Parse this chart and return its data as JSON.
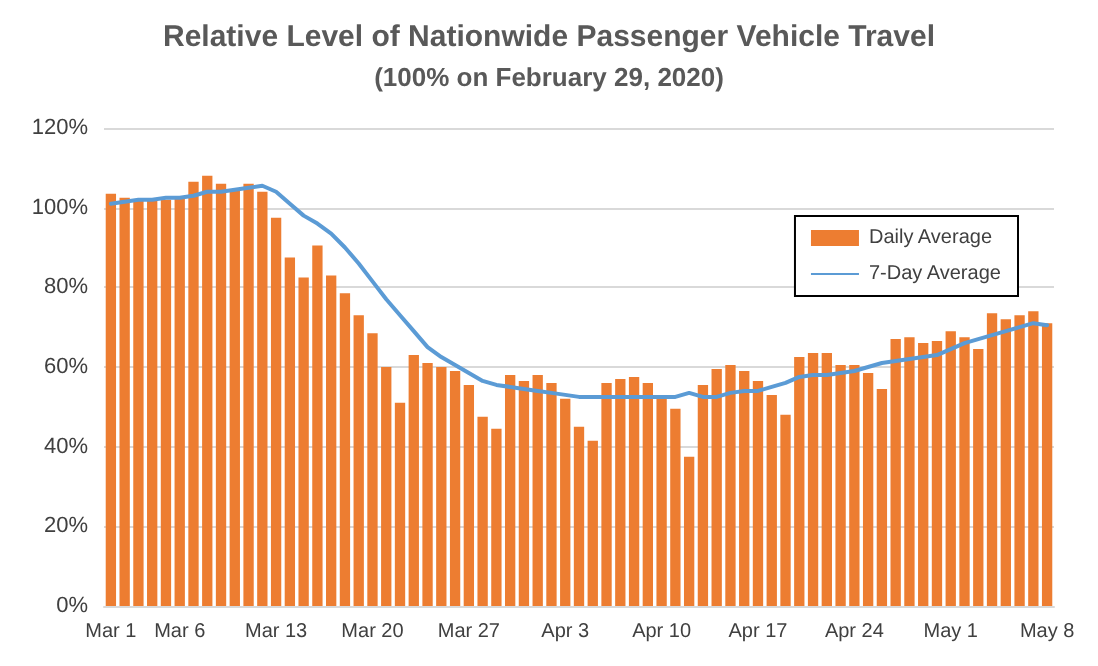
{
  "chart_data": {
    "type": "bar",
    "title": "Relative Level of Nationwide Passenger Vehicle Travel",
    "subtitle": "(100% on February 29, 2020)",
    "categories": [
      "Mar 1",
      null,
      null,
      null,
      null,
      "Mar 6",
      null,
      null,
      null,
      null,
      null,
      null,
      "Mar 13",
      null,
      null,
      null,
      null,
      null,
      null,
      "Mar 20",
      null,
      null,
      null,
      null,
      null,
      null,
      "Mar 27",
      null,
      null,
      null,
      null,
      null,
      null,
      "Apr 3",
      null,
      null,
      null,
      null,
      null,
      null,
      "Apr 10",
      null,
      null,
      null,
      null,
      null,
      null,
      "Apr 17",
      null,
      null,
      null,
      null,
      null,
      null,
      "Apr 24",
      null,
      null,
      null,
      null,
      null,
      null,
      "May 1",
      null,
      null,
      null,
      null,
      null,
      null,
      "May 8"
    ],
    "series": [
      {
        "name": "Daily Average",
        "color": "#ed7d31",
        "values": [
          103.5,
          102.5,
          102,
          102,
          102,
          102.5,
          106.5,
          108,
          106,
          104.5,
          106,
          104,
          97.5,
          87.5,
          82.5,
          90.5,
          83,
          78.5,
          73,
          68.5,
          60,
          51,
          63,
          61,
          60,
          59,
          55.5,
          47.5,
          44.5,
          58,
          56.5,
          58,
          56,
          52,
          45,
          41.5,
          56,
          57,
          57.5,
          56,
          53,
          49.5,
          37.5,
          55.5,
          59.5,
          60.5,
          59,
          56.5,
          53,
          48,
          62.5,
          63.5,
          63.5,
          60.5,
          60.5,
          58.5,
          54.5,
          67,
          67.5,
          66,
          66.5,
          69,
          67.5,
          64.5,
          73.5,
          72,
          73,
          74,
          71
        ]
      },
      {
        "name": "7-Day Average",
        "type": "line",
        "color": "#5b9bd5",
        "values": [
          101,
          101.5,
          102,
          102,
          102.5,
          102.5,
          103,
          104,
          104,
          104.5,
          105,
          105.5,
          104,
          101,
          98,
          96,
          93.5,
          90,
          86,
          81.5,
          77,
          73,
          69,
          65,
          62.5,
          60.5,
          58.5,
          56.5,
          55.5,
          55,
          54.5,
          54,
          53.5,
          53,
          52.5,
          52.5,
          52.5,
          52.5,
          52.5,
          52.5,
          52.5,
          52.5,
          53.5,
          52.5,
          52.5,
          53.5,
          54,
          54,
          55,
          56,
          57.5,
          58,
          58,
          58.5,
          59,
          60,
          61,
          61.5,
          62,
          62.5,
          63,
          64.5,
          66,
          67,
          68,
          69,
          70,
          71,
          70.5
        ]
      }
    ],
    "ylim": [
      0,
      120
    ],
    "yticks": [
      {
        "value": 0,
        "label": "0%"
      },
      {
        "value": 20,
        "label": "20%"
      },
      {
        "value": 40,
        "label": "40%"
      },
      {
        "value": 60,
        "label": "60%"
      },
      {
        "value": 80,
        "label": "80%"
      },
      {
        "value": 100,
        "label": "100%"
      },
      {
        "value": 120,
        "label": "120%"
      }
    ],
    "grid": "y",
    "legend": "top right",
    "marker": "none",
    "line_style": "solid"
  }
}
